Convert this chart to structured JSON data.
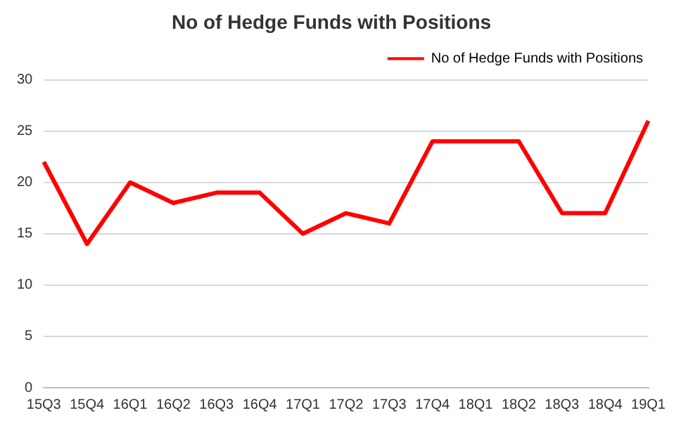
{
  "chart_data": {
    "type": "line",
    "title": "No of Hedge Funds with Positions",
    "categories": [
      "15Q3",
      "15Q4",
      "16Q1",
      "16Q2",
      "16Q3",
      "16Q4",
      "17Q1",
      "17Q2",
      "17Q3",
      "17Q4",
      "18Q1",
      "18Q2",
      "18Q3",
      "18Q4",
      "19Q1"
    ],
    "series": [
      {
        "name": "No of Hedge Funds with Positions",
        "color": "#ff0000",
        "values": [
          22,
          14,
          20,
          18,
          19,
          19,
          15,
          17,
          16,
          24,
          24,
          24,
          17,
          17,
          26
        ]
      }
    ],
    "ylim": [
      0,
      30
    ],
    "yticks": [
      0,
      5,
      10,
      15,
      20,
      25,
      30
    ],
    "grid": "y",
    "legend": "top right",
    "marker": "none",
    "line_style": "solid"
  }
}
